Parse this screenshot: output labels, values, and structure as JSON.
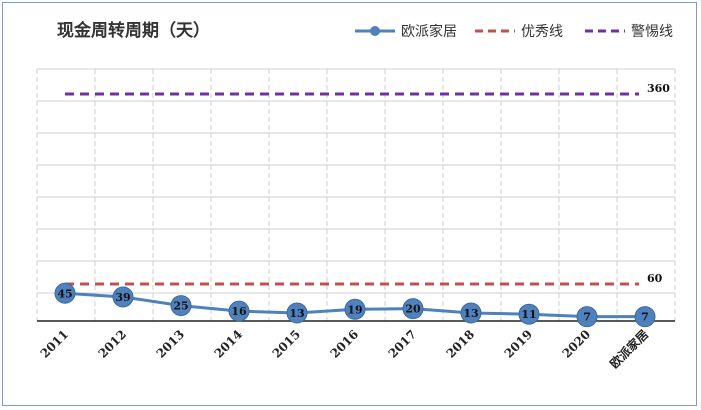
{
  "chart_data": {
    "type": "line",
    "title": "现金周转周期（天）",
    "categories": [
      "2011",
      "2012",
      "2013",
      "2014",
      "2015",
      "2016",
      "2017",
      "2018",
      "2019",
      "2020",
      "欧派家居"
    ],
    "series": [
      {
        "name": "欧派家居",
        "values": [
          45,
          39,
          25,
          16,
          13,
          19,
          20,
          13,
          11,
          7,
          7
        ],
        "color": "#4f81bd",
        "style": "solid-marker"
      },
      {
        "name": "优秀线",
        "values": [
          60,
          60,
          60,
          60,
          60,
          60,
          60,
          60,
          60,
          60,
          60
        ],
        "color": "#c0504d",
        "style": "dashed",
        "end_label": "60"
      },
      {
        "name": "警惕线",
        "values": [
          360,
          360,
          360,
          360,
          360,
          360,
          360,
          360,
          360,
          360,
          360
        ],
        "color": "#7030a0",
        "style": "dashed",
        "end_label": "360"
      }
    ],
    "ylim": [
      0,
      360
    ],
    "grid": true,
    "legend_position": "top-right"
  }
}
